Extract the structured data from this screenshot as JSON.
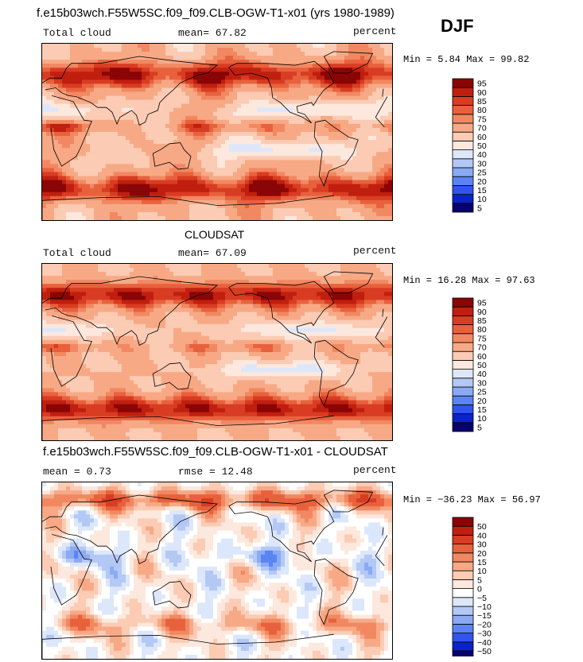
{
  "season": "DJF",
  "colors": {
    "abs_scale": [
      "#08006d",
      "#0a22c8",
      "#2f55ee",
      "#5b84f3",
      "#8aaaf4",
      "#b4c8f5",
      "#dde7fb",
      "#fde8de",
      "#fbcbb4",
      "#f7a985",
      "#f18862",
      "#e8613d",
      "#d83c22",
      "#c01f0f",
      "#8a0505"
    ],
    "diff_scale": [
      "#08006d",
      "#0a22c8",
      "#2f55ee",
      "#5b84f3",
      "#8aaaf4",
      "#b4c8f5",
      "#dde7fb",
      "#ffffff",
      "#fde8de",
      "#fbcbb4",
      "#f7a985",
      "#f18862",
      "#e8613d",
      "#d83c22",
      "#c01f0f",
      "#8a0505"
    ]
  },
  "panels": [
    {
      "header_title": "f.e15b03wch.F55W5SC.f09_f09.CLB-OGW-T1-x01 (yrs 1980-1989)",
      "left_label": "Total cloud",
      "mid_label": "mean=  67.82",
      "right_label": "percent",
      "minmax": "Min =   5.84 Max =  99.82",
      "colorbar_labels": [
        "5",
        "10",
        "15",
        "20",
        "25",
        "30",
        "40",
        "50",
        "60",
        "70",
        "75",
        "80",
        "85",
        "90",
        "95"
      ]
    },
    {
      "header_title": "CLOUDSAT",
      "left_label": "Total cloud",
      "mid_label": "mean=  67.09",
      "right_label": "percent",
      "minmax": "Min =  16.28 Max =  97.63",
      "colorbar_labels": [
        "5",
        "10",
        "15",
        "20",
        "25",
        "30",
        "40",
        "50",
        "60",
        "70",
        "75",
        "80",
        "85",
        "90",
        "95"
      ]
    },
    {
      "header_title": "f.e15b03wch.F55W5SC.f09_f09.CLB-OGW-T1-x01 - CLOUDSAT",
      "left_label": "mean =   0.73",
      "mid_label": "rmse =  12.48",
      "right_label": "percent",
      "minmax": "Min = −36.23 Max =  56.97",
      "colorbar_labels": [
        "−50",
        "−40",
        "−30",
        "−20",
        "−15",
        "−10",
        "−5",
        "0",
        "5",
        "10",
        "15",
        "20",
        "30",
        "40",
        "50"
      ]
    }
  ]
}
